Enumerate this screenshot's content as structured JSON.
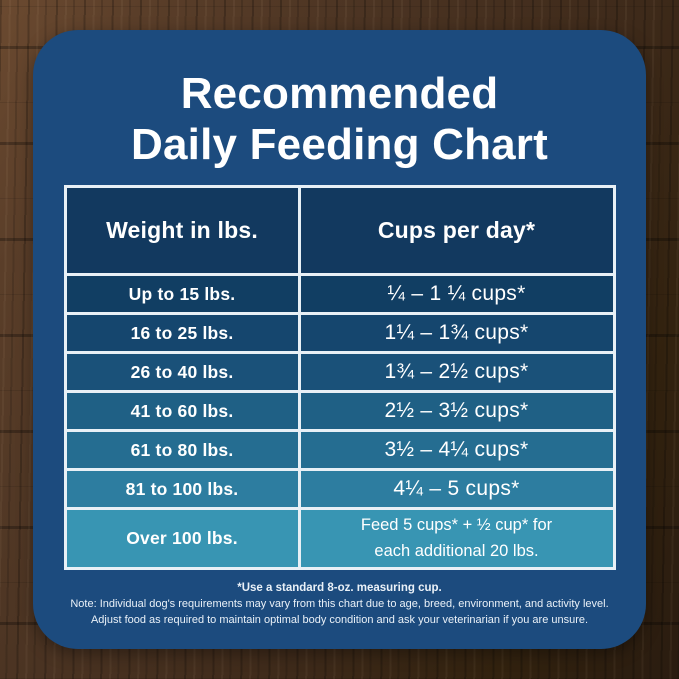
{
  "title": {
    "line1": "Recommended",
    "line2": "Daily Feeding Chart"
  },
  "chart_data": {
    "type": "table",
    "title": "Recommended Daily Feeding Chart",
    "columns": [
      "Weight in lbs.",
      "Cups per day*"
    ],
    "rows": [
      [
        "Up to 15 lbs.",
        "¼ – 1 ¼ cups*"
      ],
      [
        "16 to 25 lbs.",
        "1¼ – 1¾ cups*"
      ],
      [
        "26 to 40 lbs.",
        "1¾ – 2½ cups*"
      ],
      [
        "41 to 60 lbs.",
        "2½ – 3½ cups*"
      ],
      [
        "61 to 80 lbs.",
        "3½ – 4¼ cups*"
      ],
      [
        "81 to 100 lbs.",
        "4¼ – 5 cups*"
      ],
      [
        "Over 100 lbs.",
        "Feed 5 cups* + ½ cup* for each additional 20 lbs."
      ]
    ]
  },
  "footnotes": {
    "cup_note": "*Use a standard 8-oz. measuring cup.",
    "note_line1": "Note: Individual dog's requirements may vary from this chart due to age, breed, environment, and activity level.",
    "note_line2": "Adjust food as required to maintain optimal body condition and ask your veterinarian if you are unsure."
  },
  "colors": {
    "panel": "#1c4b7e",
    "table_border": "#e8f0f6",
    "header_cell": "#12395f",
    "row_colors": [
      "#113e63",
      "#15466e",
      "#1a5179",
      "#1f6085",
      "#256d91",
      "#2d7da0",
      "#3895b3"
    ],
    "text": "#ffffff"
  }
}
